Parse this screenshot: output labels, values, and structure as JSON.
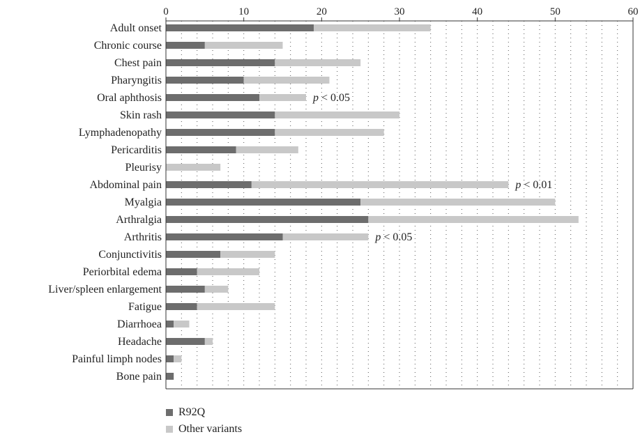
{
  "chart_data": {
    "type": "bar",
    "orientation": "horizontal",
    "stacked": true,
    "xlim": [
      0,
      60
    ],
    "x_ticks": [
      "0",
      "10",
      "20",
      "30",
      "40",
      "50",
      "60"
    ],
    "x_tick_values": [
      0,
      10,
      20,
      30,
      40,
      50,
      60
    ],
    "axis_position": "top",
    "grid": "vertical dotted",
    "categories": [
      "Adult onset",
      "Chronic course",
      "Chest pain",
      "Pharyngitis",
      "Oral aphthosis",
      "Skin rash",
      "Lymphadenopathy",
      "Pericarditis",
      "Pleurisy",
      "Abdominal pain",
      "Myalgia",
      "Arthralgia",
      "Arthritis",
      "Conjunctivitis",
      "Periorbital edema",
      "Liver/spleen enlargement",
      "Fatigue",
      "Diarrhoea",
      "Headache",
      "Painful limph nodes",
      "Bone pain"
    ],
    "series": [
      {
        "name": "R92Q",
        "color": "#6d6d6d",
        "values": [
          19,
          5,
          14,
          10,
          12,
          14,
          14,
          9,
          0,
          11,
          25,
          26,
          15,
          7,
          4,
          5,
          4,
          1,
          5,
          1,
          1
        ]
      },
      {
        "name": "Other variants",
        "color": "#c8c8c8",
        "values": [
          15,
          10,
          11,
          11,
          6,
          16,
          14,
          8,
          7,
          33,
          25,
          27,
          11,
          7,
          8,
          3,
          10,
          2,
          1,
          1,
          0
        ]
      }
    ],
    "annotations": [
      {
        "category_index": 4,
        "prefix": "p",
        "text": " < 0.05"
      },
      {
        "category_index": 9,
        "prefix": "p",
        "text": " < 0.01"
      },
      {
        "category_index": 12,
        "prefix": "p",
        "text": " < 0.05"
      }
    ],
    "legend": "bottom-left"
  }
}
